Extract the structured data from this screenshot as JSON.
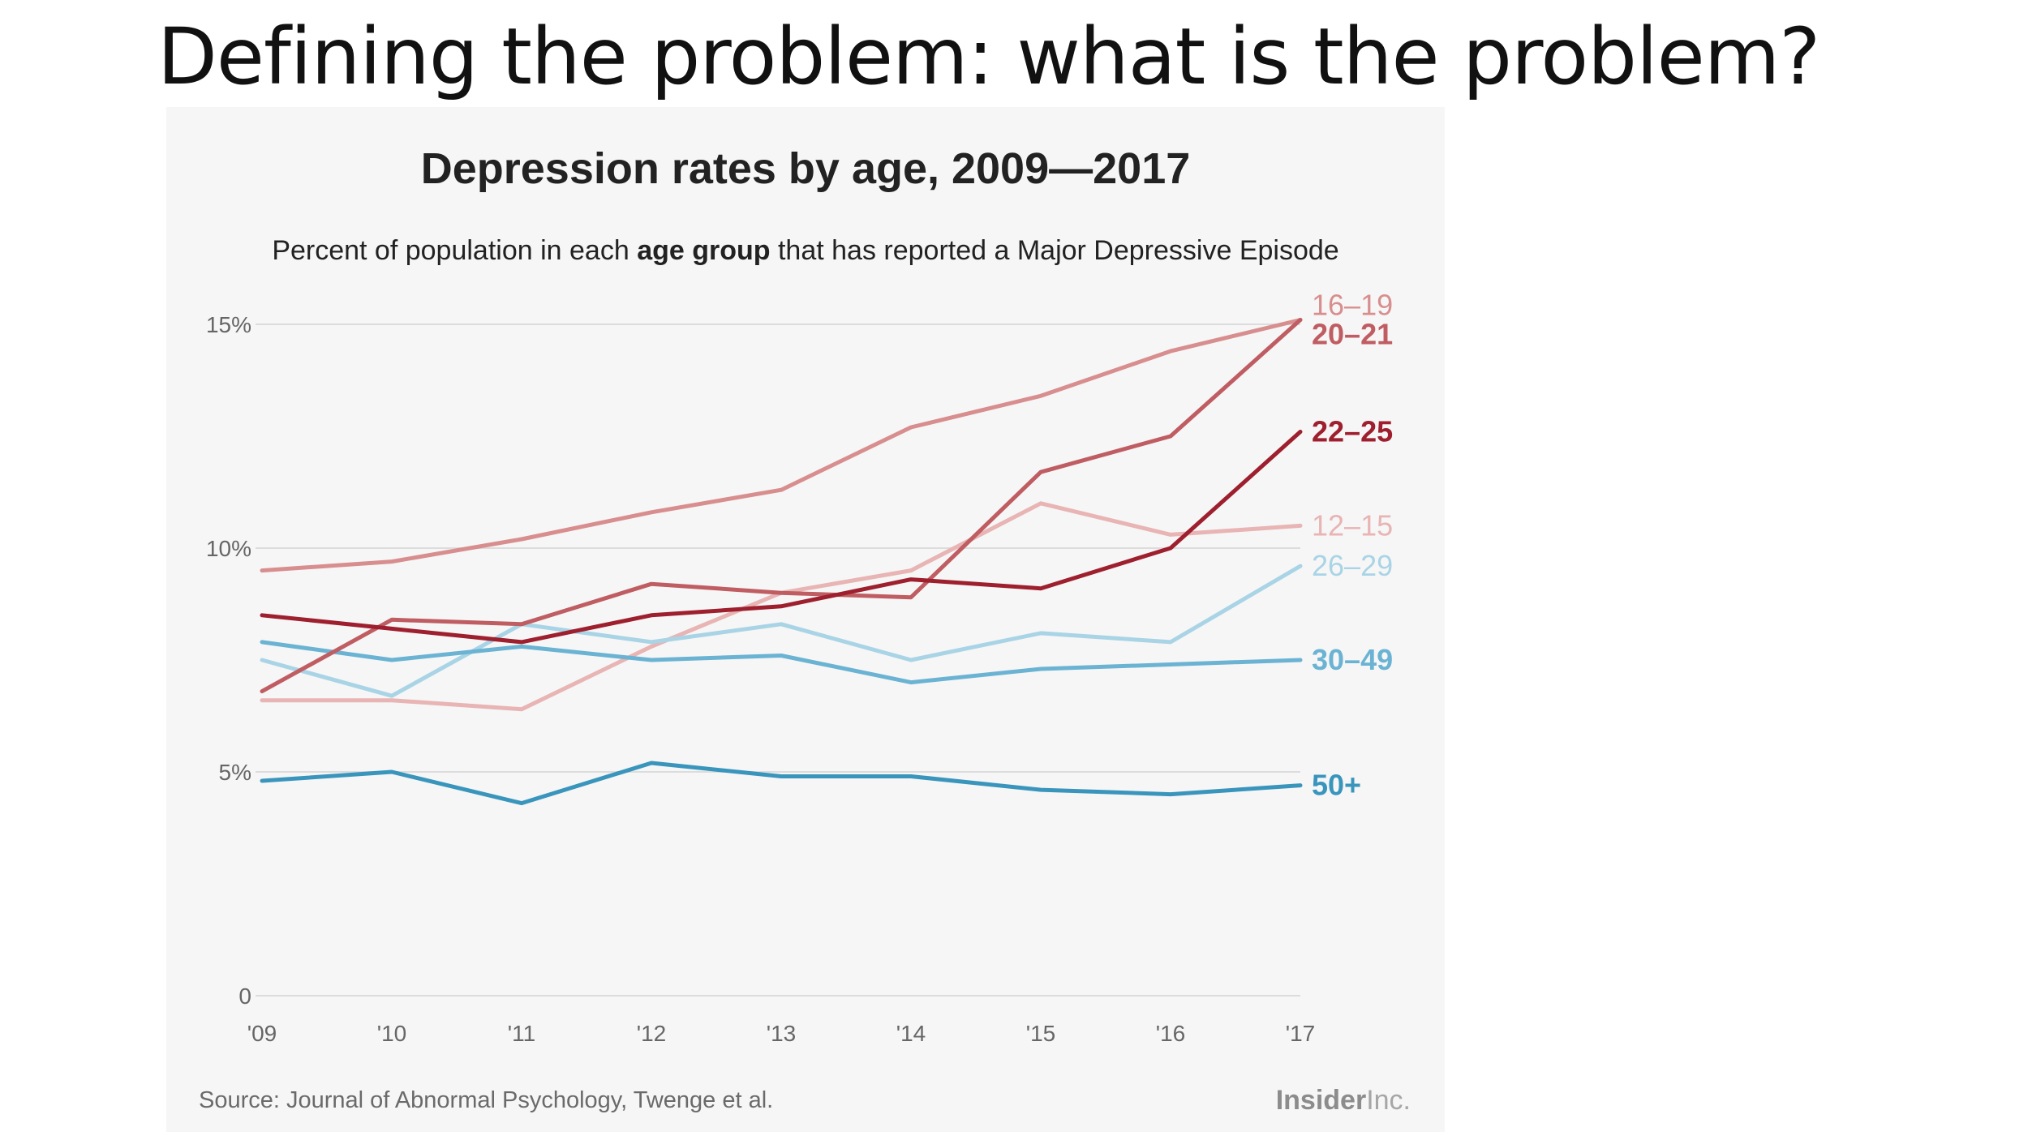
{
  "slide": {
    "title": "Defining the problem: what is the problem?"
  },
  "chart_data": {
    "type": "line",
    "title": "Depression rates by age, 2009—2017",
    "subtitle": {
      "prefix": "Percent of population in each ",
      "bold": "age group",
      "suffix": " that has reported a Major Depressive Episode"
    },
    "xlabel": "",
    "ylabel": "",
    "x": [
      "'09",
      "'10",
      "'11",
      "'12",
      "'13",
      "'14",
      "'15",
      "'16",
      "'17"
    ],
    "ylim": [
      0,
      15
    ],
    "yticks": [
      {
        "value": 0,
        "label": "0"
      },
      {
        "value": 5,
        "label": "5%"
      },
      {
        "value": 10,
        "label": "10%"
      },
      {
        "value": 15,
        "label": "15%"
      }
    ],
    "grid": true,
    "series": [
      {
        "name": "12–15",
        "color": "#e8b4b4",
        "values": [
          6.6,
          6.6,
          6.4,
          7.8,
          9.0,
          9.5,
          11.0,
          10.3,
          10.5
        ]
      },
      {
        "name": "26–29",
        "color": "#a9d4e6",
        "values": [
          7.5,
          6.7,
          8.3,
          7.9,
          8.3,
          7.5,
          8.1,
          7.9,
          9.6
        ]
      },
      {
        "name": "30–49",
        "color": "#6bb3d3",
        "values": [
          7.9,
          7.5,
          7.8,
          7.5,
          7.6,
          7.0,
          7.3,
          7.4,
          7.5
        ]
      },
      {
        "name": "16–19",
        "color": "#d88e8e",
        "values": [
          9.5,
          9.7,
          10.2,
          10.8,
          11.3,
          12.7,
          13.4,
          14.4,
          15.1
        ]
      },
      {
        "name": "20–21",
        "color": "#bf5d62",
        "values": [
          6.8,
          8.4,
          8.3,
          9.2,
          9.0,
          8.9,
          11.7,
          12.5,
          15.1
        ]
      },
      {
        "name": "22–25",
        "color": "#9e1f2d",
        "values": [
          8.5,
          8.2,
          7.9,
          8.5,
          8.7,
          9.3,
          9.1,
          10.0,
          12.6
        ]
      },
      {
        "name": "50+",
        "color": "#3a95bd",
        "values": [
          4.8,
          5.0,
          4.3,
          5.2,
          4.9,
          4.9,
          4.6,
          4.5,
          4.7
        ]
      }
    ],
    "source": "Source: Journal of Abnormal Psychology, Twenge et al.",
    "brand": {
      "bold": "Insider",
      "light": "Inc."
    }
  }
}
